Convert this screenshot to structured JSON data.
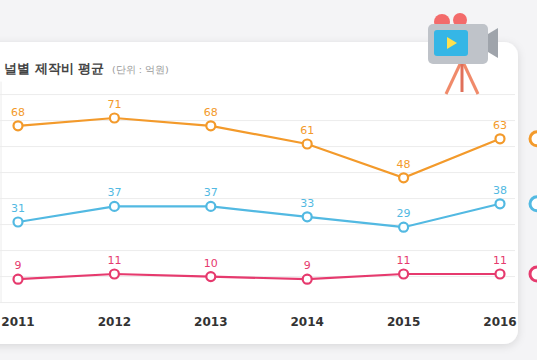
{
  "chart_data": {
    "type": "line",
    "title": "널별 제작비 평균",
    "subtitle": "(단위 : 억원)",
    "categories": [
      "2011",
      "2012",
      "2013",
      "2014",
      "2015",
      "2016"
    ],
    "series": [
      {
        "color": "#f39a2b",
        "marker": "circle",
        "values": [
          68,
          71,
          68,
          61,
          48,
          63
        ]
      },
      {
        "color": "#52b9e2",
        "marker": "circle",
        "values": [
          31,
          37,
          37,
          33,
          29,
          38
        ]
      },
      {
        "color": "#e63a6e",
        "marker": "circle",
        "values": [
          9,
          11,
          10,
          9,
          11,
          11
        ]
      }
    ],
    "ylim": [
      0,
      85
    ],
    "yticks": [
      0,
      10,
      20,
      30,
      40,
      50,
      60,
      70,
      80
    ],
    "grid": true,
    "data_labels": true,
    "tick_labels": "x"
  }
}
